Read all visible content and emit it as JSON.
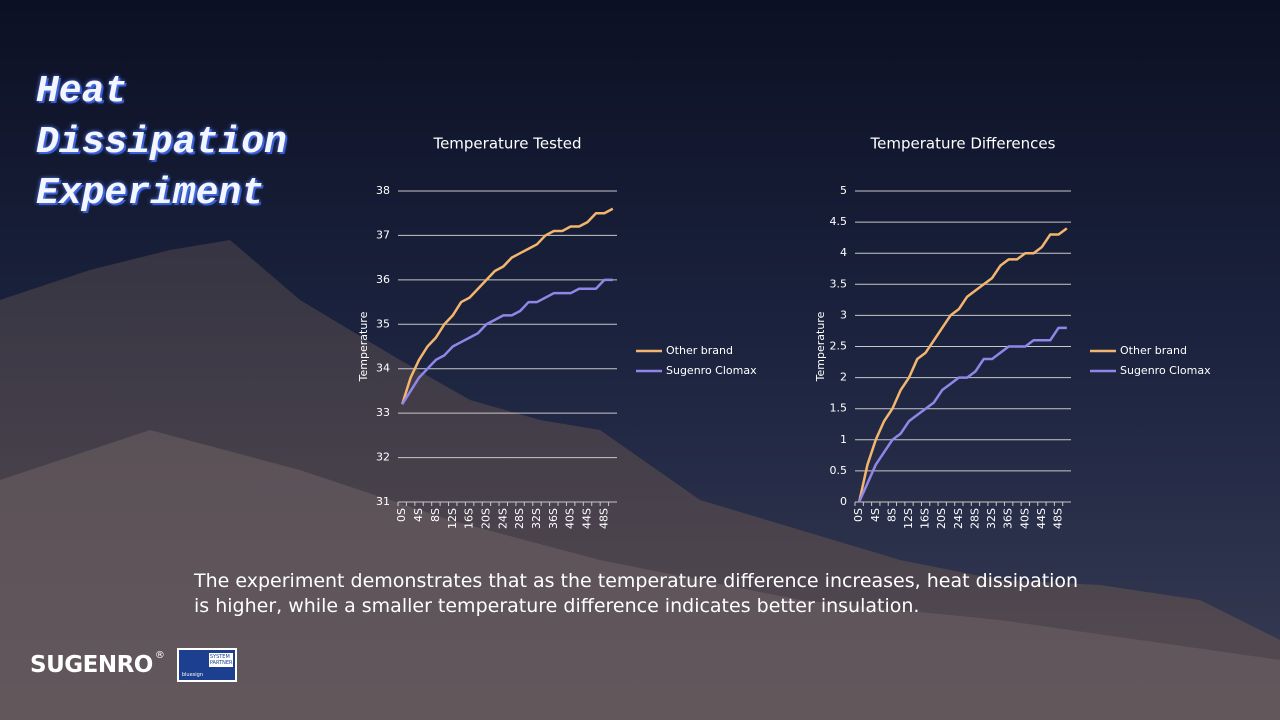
{
  "heading": "Heat Dissipation Experiment",
  "caption": "The experiment demonstrates that as the temperature difference increases, heat dissipation is higher, while a smaller temperature difference indicates better insulation.",
  "logo": {
    "brand": "SUGENRO",
    "registered": "®",
    "partner_line": "SYSTEM PARTNER",
    "partner_name": "bluesign"
  },
  "chart_data": [
    {
      "type": "line",
      "title": "Temperature Tested",
      "y_label": "Temperature",
      "categories": [
        "0S",
        null,
        "4S",
        null,
        "8S",
        null,
        "12S",
        null,
        "16S",
        null,
        "20S",
        null,
        "24S",
        null,
        "28S",
        null,
        "32S",
        null,
        "36S",
        null,
        "40S",
        null,
        "44S",
        null,
        "48S",
        null
      ],
      "series": [
        {
          "name": "Other brand",
          "color": "#f4b66e",
          "values": [
            33.2,
            33.8,
            34.2,
            34.5,
            34.7,
            35.0,
            35.2,
            35.5,
            35.6,
            35.8,
            36.0,
            36.2,
            36.3,
            36.5,
            36.6,
            36.7,
            36.8,
            37.0,
            37.1,
            37.1,
            37.2,
            37.2,
            37.3,
            37.5,
            37.5,
            37.6
          ]
        },
        {
          "name": "Sugenro Clomax",
          "color": "#8f86e8",
          "values": [
            33.2,
            33.5,
            33.8,
            34.0,
            34.2,
            34.3,
            34.5,
            34.6,
            34.7,
            34.8,
            35.0,
            35.1,
            35.2,
            35.2,
            35.3,
            35.5,
            35.5,
            35.6,
            35.7,
            35.7,
            35.7,
            35.8,
            35.8,
            35.8,
            36.0,
            36.0
          ]
        }
      ],
      "ylim": [
        31,
        38
      ],
      "yticks": [
        31,
        32,
        33,
        34,
        35,
        36,
        37,
        38
      ],
      "grid": true,
      "legend": "right"
    },
    {
      "type": "line",
      "title": "Temperature Differences",
      "y_label": "Temperature",
      "categories": [
        "0S",
        null,
        "4S",
        null,
        "8S",
        null,
        "12S",
        null,
        "16S",
        null,
        "20S",
        null,
        "24S",
        null,
        "28S",
        null,
        "32S",
        null,
        "36S",
        null,
        "40S",
        null,
        "44S",
        null,
        "48S",
        null
      ],
      "series": [
        {
          "name": "Other brand",
          "color": "#f4b66e",
          "values": [
            0,
            0.6,
            1.0,
            1.3,
            1.5,
            1.8,
            2.0,
            2.3,
            2.4,
            2.6,
            2.8,
            3.0,
            3.1,
            3.3,
            3.4,
            3.5,
            3.6,
            3.8,
            3.9,
            3.9,
            4.0,
            4.0,
            4.1,
            4.3,
            4.3,
            4.4
          ]
        },
        {
          "name": "Sugenro Clomax",
          "color": "#8f86e8",
          "values": [
            0,
            0.3,
            0.6,
            0.8,
            1.0,
            1.1,
            1.3,
            1.4,
            1.5,
            1.6,
            1.8,
            1.9,
            2.0,
            2.0,
            2.1,
            2.3,
            2.3,
            2.4,
            2.5,
            2.5,
            2.5,
            2.6,
            2.6,
            2.6,
            2.8,
            2.8
          ]
        }
      ],
      "ylim": [
        0,
        5
      ],
      "yticks": [
        0,
        0.5,
        1,
        1.5,
        2,
        2.5,
        3,
        3.5,
        4,
        4.5,
        5
      ],
      "grid": true,
      "legend": "right"
    }
  ]
}
